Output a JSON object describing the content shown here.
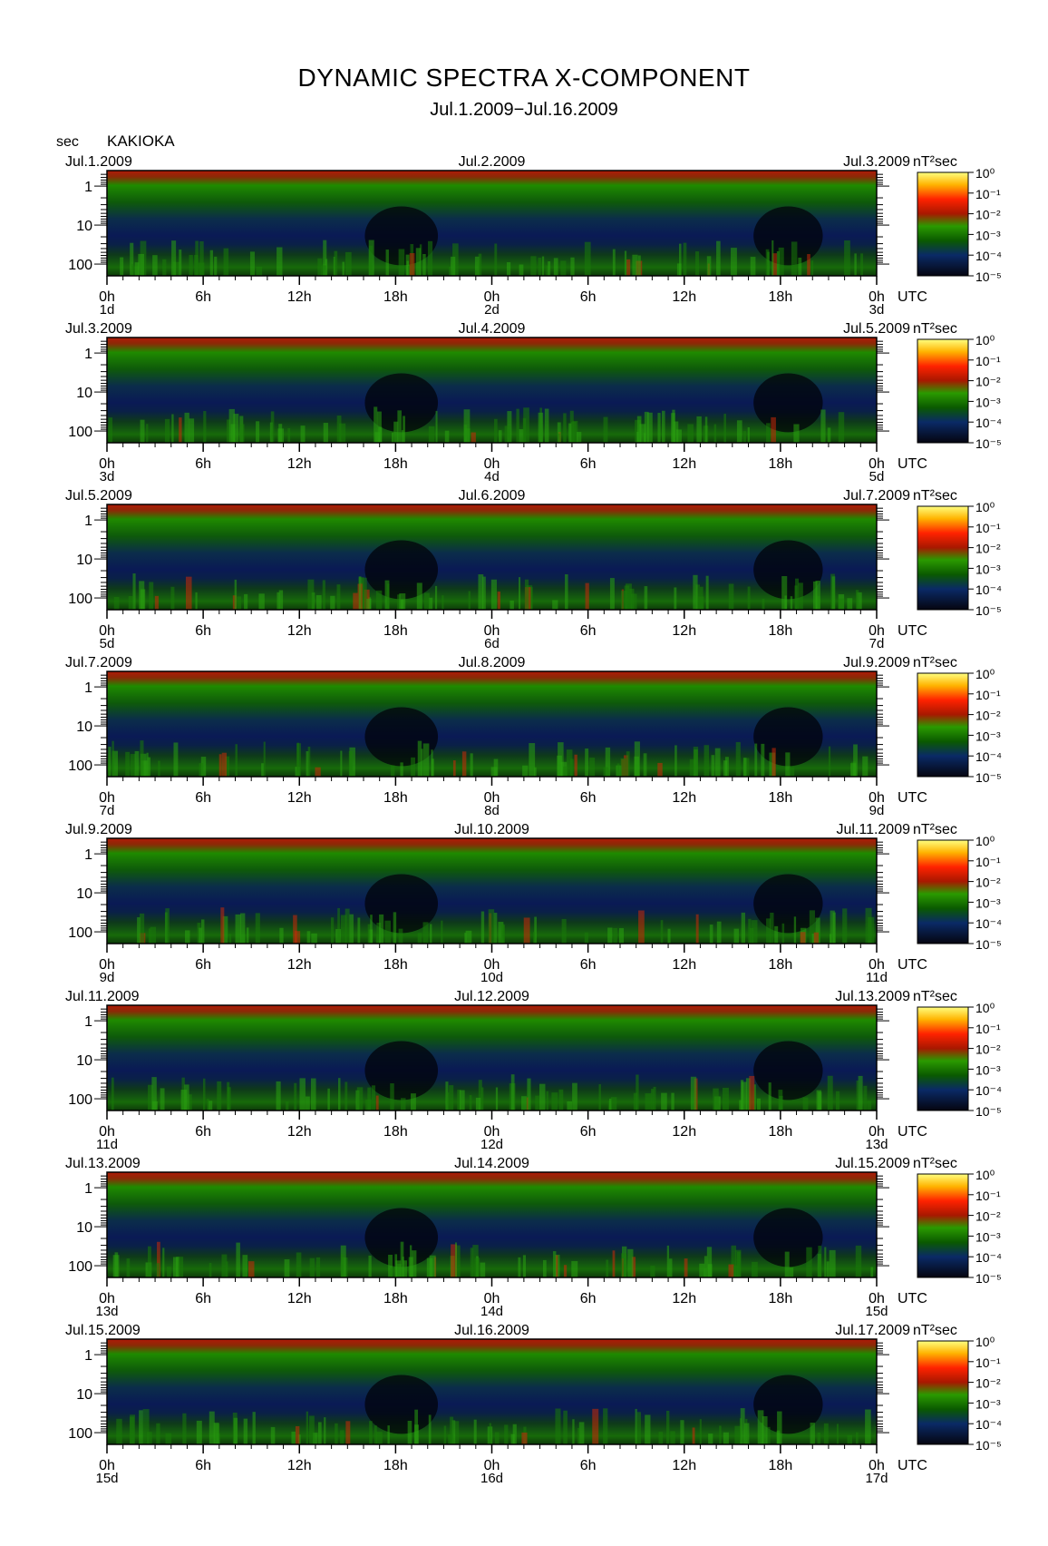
{
  "header": {
    "title": "DYNAMIC SPECTRA X-COMPONENT",
    "subtitle": "Jul.1.2009−Jul.16.2009",
    "y_unit": "sec",
    "station": "KAKIOKA"
  },
  "chart_data": {
    "type": "heatmap",
    "x_tick_labels": [
      "0h",
      "6h",
      "12h",
      "18h",
      "0h",
      "6h",
      "12h",
      "18h",
      "0h"
    ],
    "x_unit_label": "UTC",
    "y_tick_labels": [
      "1",
      "10",
      "100"
    ],
    "y_axis": {
      "label": "sec",
      "scale": "log",
      "range": [
        0.4,
        200
      ]
    },
    "colorbar": {
      "unit": "nT²sec",
      "tick_labels": [
        "10⁰",
        "10⁻¹",
        "10⁻²",
        "10⁻³",
        "10⁻⁴",
        "10⁻⁵"
      ],
      "exponents": [
        0,
        -1,
        -2,
        -3,
        -4,
        -5
      ],
      "colors": [
        "#ffff66",
        "#ff9900",
        "#ff1a00",
        "#a02000",
        "#1c9a00",
        "#0b4a00",
        "#0a2060",
        "#050510"
      ]
    },
    "panels": [
      {
        "date_left": "Jul.1.2009",
        "date_mid": "Jul.2.2009",
        "date_right": "Jul.3.2009",
        "day_start": "1d",
        "day_mid": "2d",
        "day_end": "3d"
      },
      {
        "date_left": "Jul.3.2009",
        "date_mid": "Jul.4.2009",
        "date_right": "Jul.5.2009",
        "day_start": "3d",
        "day_mid": "4d",
        "day_end": "5d"
      },
      {
        "date_left": "Jul.5.2009",
        "date_mid": "Jul.6.2009",
        "date_right": "Jul.7.2009",
        "day_start": "5d",
        "day_mid": "6d",
        "day_end": "7d"
      },
      {
        "date_left": "Jul.7.2009",
        "date_mid": "Jul.8.2009",
        "date_right": "Jul.9.2009",
        "day_start": "7d",
        "day_mid": "8d",
        "day_end": "9d"
      },
      {
        "date_left": "Jul.9.2009",
        "date_mid": "Jul.10.2009",
        "date_right": "Jul.11.2009",
        "day_start": "9d",
        "day_mid": "10d",
        "day_end": "11d"
      },
      {
        "date_left": "Jul.11.2009",
        "date_mid": "Jul.12.2009",
        "date_right": "Jul.13.2009",
        "day_start": "11d",
        "day_mid": "12d",
        "day_end": "13d"
      },
      {
        "date_left": "Jul.13.2009",
        "date_mid": "Jul.14.2009",
        "date_right": "Jul.15.2009",
        "day_start": "13d",
        "day_mid": "14d",
        "day_end": "15d"
      },
      {
        "date_left": "Jul.15.2009",
        "date_mid": "Jul.16.2009",
        "date_right": "Jul.17.2009",
        "day_start": "15d",
        "day_mid": "16d",
        "day_end": "17d"
      }
    ]
  }
}
